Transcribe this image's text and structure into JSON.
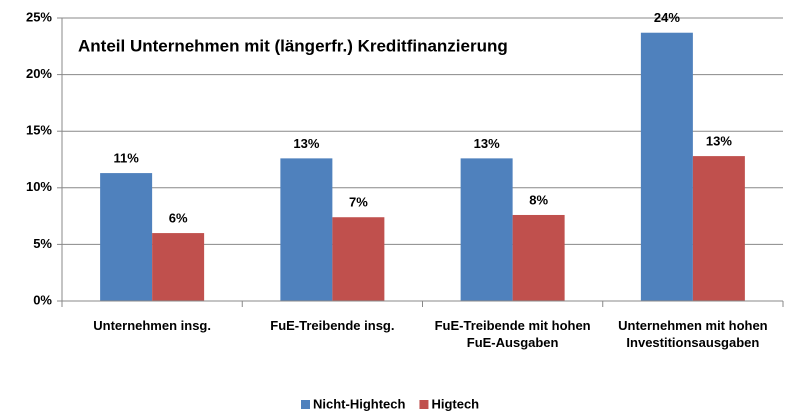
{
  "chart_data": {
    "type": "bar",
    "title": "Anteil Unternehmen mit (längerfr.) Kreditfinanzierung",
    "categories": [
      "Unternehmen insg.",
      "FuE-Treibende insg.",
      "FuE-Treibende mit hohen FuE-Ausgaben",
      "Unternehmen mit hohen Investitionsausgaben"
    ],
    "series": [
      {
        "name": "Nicht-Hightech",
        "color": "#4f81bd",
        "values": [
          11.3,
          12.6,
          12.6,
          23.7
        ],
        "value_labels": [
          "11%",
          "13%",
          "13%",
          "24%"
        ]
      },
      {
        "name": "Higtech",
        "color": "#c0504d",
        "values": [
          6.0,
          7.4,
          7.6,
          12.8
        ],
        "value_labels": [
          "6%",
          "7%",
          "8%",
          "13%"
        ]
      }
    ],
    "ylim": [
      0,
      25
    ],
    "yticks": [
      {
        "value": 0,
        "label": "0%"
      },
      {
        "value": 5,
        "label": "5%"
      },
      {
        "value": 10,
        "label": "10%"
      },
      {
        "value": 15,
        "label": "15%"
      },
      {
        "value": 20,
        "label": "20%"
      },
      {
        "value": 25,
        "label": "25%"
      }
    ],
    "grid": true,
    "legend": "bottom"
  }
}
